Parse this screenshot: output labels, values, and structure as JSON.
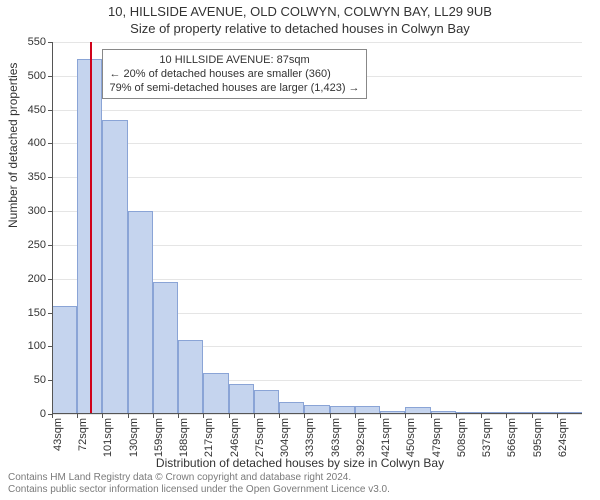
{
  "header": {
    "line1": "10, HILLSIDE AVENUE, OLD COLWYN, COLWYN BAY, LL29 9UB",
    "line2": "Size of property relative to detached houses in Colwyn Bay"
  },
  "chart": {
    "type": "histogram",
    "background_color": "#ffffff",
    "grid_color": "#e5e5e5",
    "axis_color": "#555555",
    "bar_fill": "#c5d4ee",
    "bar_border": "#8aa4d6",
    "marker_color": "#d0021b",
    "marker_sqm": 87,
    "x_start_sqm": 43,
    "x_bin_width_sqm": 29,
    "ylim": [
      0,
      550
    ],
    "ytick_step": 50,
    "ylabel": "Number of detached properties",
    "xlabel": "Distribution of detached houses by size in Colwyn Bay",
    "x_tick_labels": [
      "43sqm",
      "72sqm",
      "101sqm",
      "130sqm",
      "159sqm",
      "188sqm",
      "217sqm",
      "246sqm",
      "275sqm",
      "304sqm",
      "333sqm",
      "363sqm",
      "392sqm",
      "421sqm",
      "450sqm",
      "479sqm",
      "508sqm",
      "537sqm",
      "566sqm",
      "595sqm",
      "624sqm"
    ],
    "values": [
      160,
      525,
      435,
      300,
      195,
      110,
      60,
      45,
      35,
      18,
      14,
      12,
      12,
      5,
      10,
      4,
      3,
      2,
      2,
      2,
      1
    ],
    "label_fontsize": 12,
    "tick_fontsize": 11
  },
  "annotation": {
    "line1": "10 HILLSIDE AVENUE: 87sqm",
    "line2": "← 20% of detached houses are smaller (360)",
    "line3": "79% of semi-detached houses are larger (1,423) →",
    "top_y_value": 540,
    "left_sqm": 101
  },
  "footer": {
    "line1": "Contains HM Land Registry data © Crown copyright and database right 2024.",
    "line2": "Contains public sector information licensed under the Open Government Licence v3.0."
  }
}
